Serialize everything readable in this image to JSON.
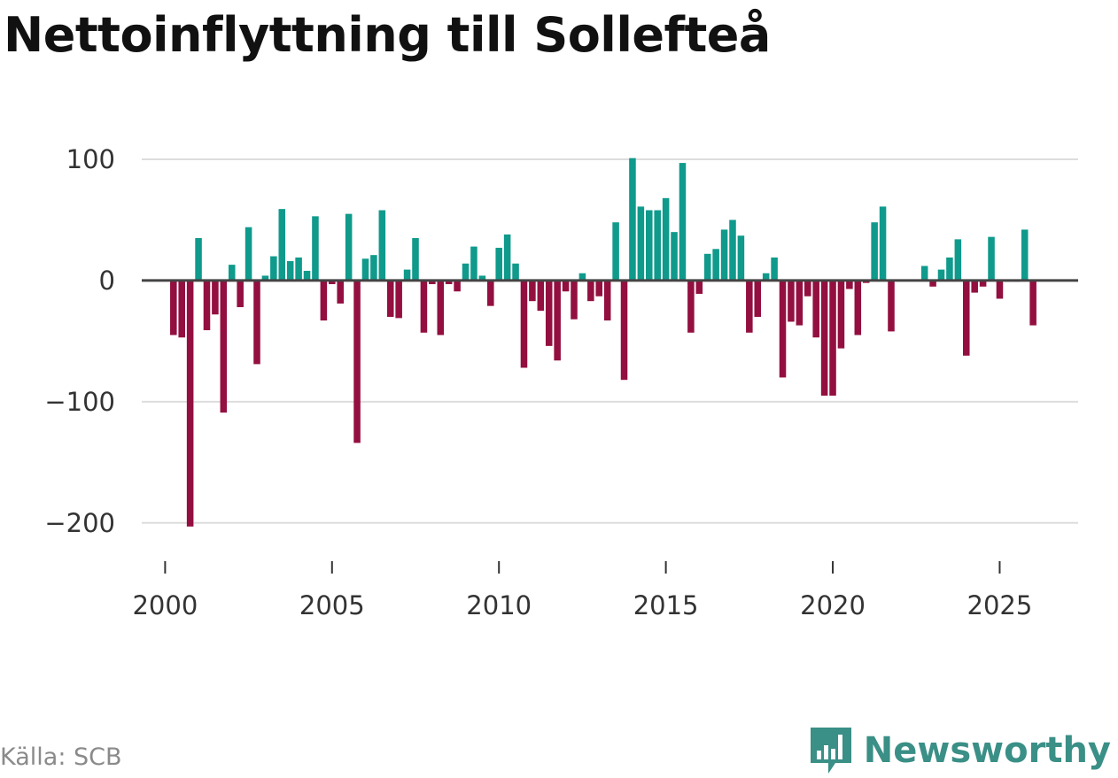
{
  "title": "Nettoinflyttning till Sollefteå",
  "source": "Källa: SCB",
  "brand": "Newsworthy",
  "colors": {
    "positive": "#0f9a8c",
    "negative": "#930f3f",
    "grid": "#dddddd",
    "zero": "#444444",
    "brand": "#3a8f86"
  },
  "chart_data": {
    "type": "bar",
    "title": "Nettoinflyttning till Sollefteå",
    "xlabel": "",
    "ylabel": "",
    "x_unit": "quarter",
    "x_start": 2000.25,
    "x_step": 0.25,
    "xlim": [
      1999.3,
      2027.35
    ],
    "ylim": [
      -225,
      100
    ],
    "x_ticks": [
      2000,
      2005,
      2010,
      2015,
      2020,
      2025
    ],
    "y_ticks": [
      100,
      0,
      -100,
      -200
    ],
    "y_tick_labels": [
      "100",
      "0",
      "−100",
      "−200"
    ],
    "grid": true,
    "series": [
      {
        "name": "Nettoinflyttning",
        "values": [
          -45,
          -47,
          -203,
          35,
          -41,
          -28,
          -109,
          13,
          -22,
          44,
          -69,
          4,
          20,
          59,
          16,
          19,
          8,
          53,
          -33,
          -3,
          -19,
          55,
          -134,
          18,
          21,
          58,
          -30,
          -31,
          9,
          35,
          -43,
          -3,
          -45,
          -3,
          -9,
          14,
          28,
          4,
          -21,
          27,
          38,
          14,
          -72,
          -17,
          -25,
          -54,
          -66,
          -9,
          -32,
          6,
          -17,
          -13,
          -33,
          48,
          -82,
          101,
          61,
          58,
          58,
          68,
          40,
          97,
          -43,
          -11,
          22,
          26,
          42,
          50,
          37,
          -43,
          -30,
          6,
          19,
          -80,
          -34,
          -37,
          -13,
          -47,
          -95,
          -95,
          -56,
          -7,
          -45,
          -2,
          48,
          61,
          -42,
          0,
          0,
          0,
          12,
          -5,
          9,
          19,
          34,
          -62,
          -10,
          -5,
          36,
          -15,
          -1,
          -1,
          42,
          -37
        ]
      }
    ]
  }
}
